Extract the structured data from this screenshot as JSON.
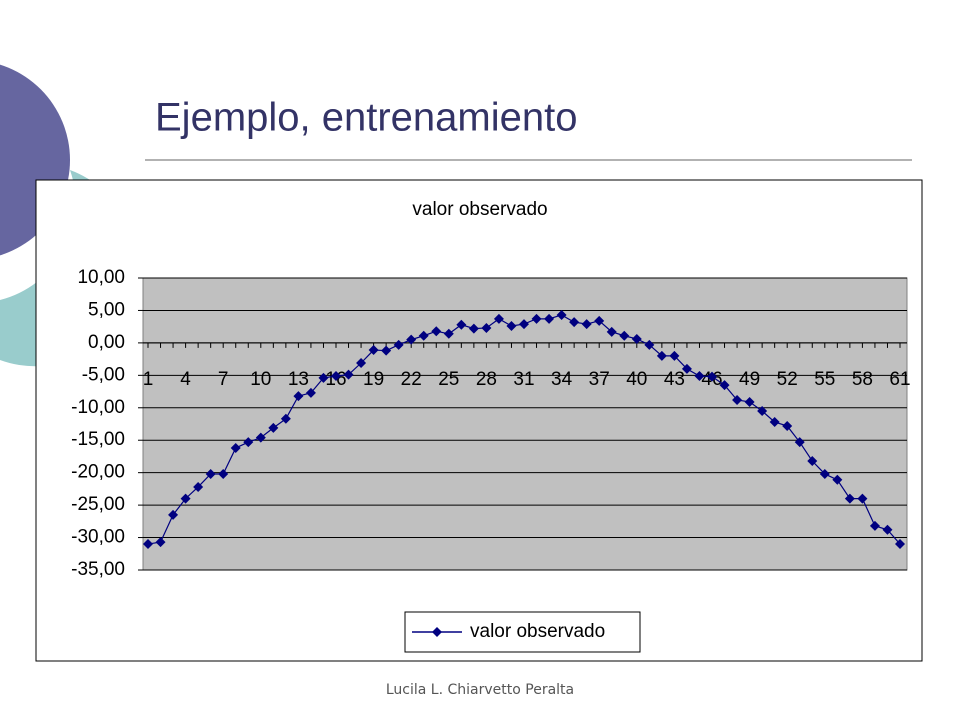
{
  "slide": {
    "title": "Ejemplo, entrenamiento",
    "footer": "Lucila L. Chiarvetto Peralta"
  },
  "chart_data": {
    "type": "line",
    "title": "valor observado",
    "categories": [
      1,
      null,
      null,
      4,
      null,
      null,
      7,
      null,
      null,
      10,
      null,
      null,
      13,
      null,
      null,
      16,
      null,
      null,
      19,
      null,
      null,
      22,
      null,
      null,
      25,
      null,
      null,
      28,
      null,
      null,
      31,
      null,
      null,
      34,
      null,
      null,
      37,
      null,
      null,
      40,
      null,
      null,
      43,
      null,
      null,
      46,
      null,
      null,
      49,
      null,
      null,
      52,
      null,
      null,
      55,
      null,
      null,
      58,
      null,
      null,
      61
    ],
    "series": [
      {
        "name": "valor observado",
        "color": "#000080",
        "values": [
          -31.0,
          -30.7,
          -26.5,
          -24.0,
          -22.2,
          -20.2,
          -20.2,
          -16.2,
          -15.3,
          -14.6,
          -13.1,
          -11.7,
          -8.2,
          -7.7,
          -5.4,
          -5.1,
          -4.9,
          -3.1,
          -1.1,
          -1.2,
          -0.3,
          0.5,
          1.1,
          1.8,
          1.4,
          2.8,
          2.2,
          2.3,
          3.7,
          2.6,
          2.9,
          3.7,
          3.7,
          4.3,
          3.2,
          2.9,
          3.4,
          1.7,
          1.1,
          0.6,
          -0.3,
          -2.0,
          -2.0,
          -4.0,
          -5.1,
          -5.2,
          -6.5,
          -8.8,
          -9.1,
          -10.5,
          -12.2,
          -12.8,
          -15.3,
          -18.2,
          -20.2,
          -21.1,
          -24.0,
          -24.0,
          -28.2,
          -28.8,
          -31.0
        ]
      }
    ],
    "ylim": [
      -35,
      10
    ],
    "yticks": [
      {
        "value": -35,
        "label": "-35,00"
      },
      {
        "value": -30,
        "label": "-30,00"
      },
      {
        "value": -25,
        "label": "-25,00"
      },
      {
        "value": -20,
        "label": "-20,00"
      },
      {
        "value": -15,
        "label": "-15,00"
      },
      {
        "value": -10,
        "label": "-10,00"
      },
      {
        "value": -5,
        "label": "-5,00"
      },
      {
        "value": 0,
        "label": "0,00"
      },
      {
        "value": 5,
        "label": "5,00"
      },
      {
        "value": 10,
        "label": "10,00"
      }
    ],
    "grid": true,
    "plot_background": "#c0c0c0",
    "legend": "bottom"
  }
}
